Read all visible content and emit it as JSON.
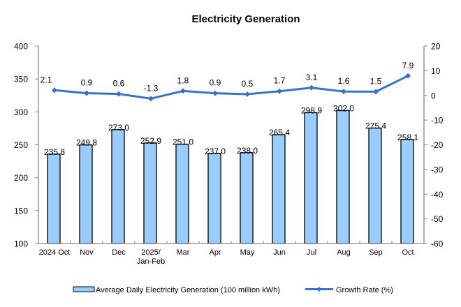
{
  "chart_data": {
    "type": "bar",
    "title": "Electricity Generation",
    "categories": [
      "2024 Oct",
      "Nov",
      "Dec",
      "2025/\nJan-Feb",
      "Mar",
      "Apr",
      "May",
      "Jun",
      "Jul",
      "Aug",
      "Sep",
      "Oct"
    ],
    "series": [
      {
        "name": "Average Daily Electricity Generation (100 million kWh)",
        "type": "bar",
        "axis": "left",
        "color": "#99CCFF",
        "edge_color": "#000000",
        "values": [
          235.8,
          249.8,
          273.0,
          252.9,
          251.0,
          237.0,
          238.0,
          265.4,
          298.9,
          302.0,
          275.4,
          258.1
        ],
        "labels": [
          "235.8",
          "249.8",
          "273.0",
          "252.9",
          "251.0",
          "237.0",
          "238.0",
          "265.4",
          "298.9",
          "302.0",
          "275.4",
          "258.1"
        ]
      },
      {
        "name": "Growth Rate (%)",
        "type": "line",
        "axis": "right",
        "color": "#3A72C4",
        "marker": "diamond",
        "values": [
          2.1,
          0.9,
          0.6,
          -1.3,
          1.8,
          0.9,
          0.5,
          1.7,
          3.1,
          1.6,
          1.5,
          7.9
        ],
        "labels": [
          "2.1",
          "0.9",
          "0.6",
          "-1.3",
          "1.8",
          "0.9",
          "0.5",
          "1.7",
          "3.1",
          "1.6",
          "1.5",
          "7.9"
        ]
      }
    ],
    "y_left": {
      "range": [
        100,
        400
      ],
      "ticks": [
        100,
        150,
        200,
        250,
        300,
        350,
        400
      ],
      "label": ""
    },
    "y_right": {
      "range": [
        -60,
        20
      ],
      "ticks": [
        -60,
        -50,
        -40,
        -30,
        -20,
        -10,
        0,
        10,
        20
      ],
      "label": ""
    },
    "xlabel": "",
    "grid": false,
    "legend": {
      "position": "bottom",
      "entries": [
        "Average Daily Electricity Generation (100 million kWh)",
        "Growth Rate (%)"
      ]
    },
    "axis_color": "#868686"
  }
}
